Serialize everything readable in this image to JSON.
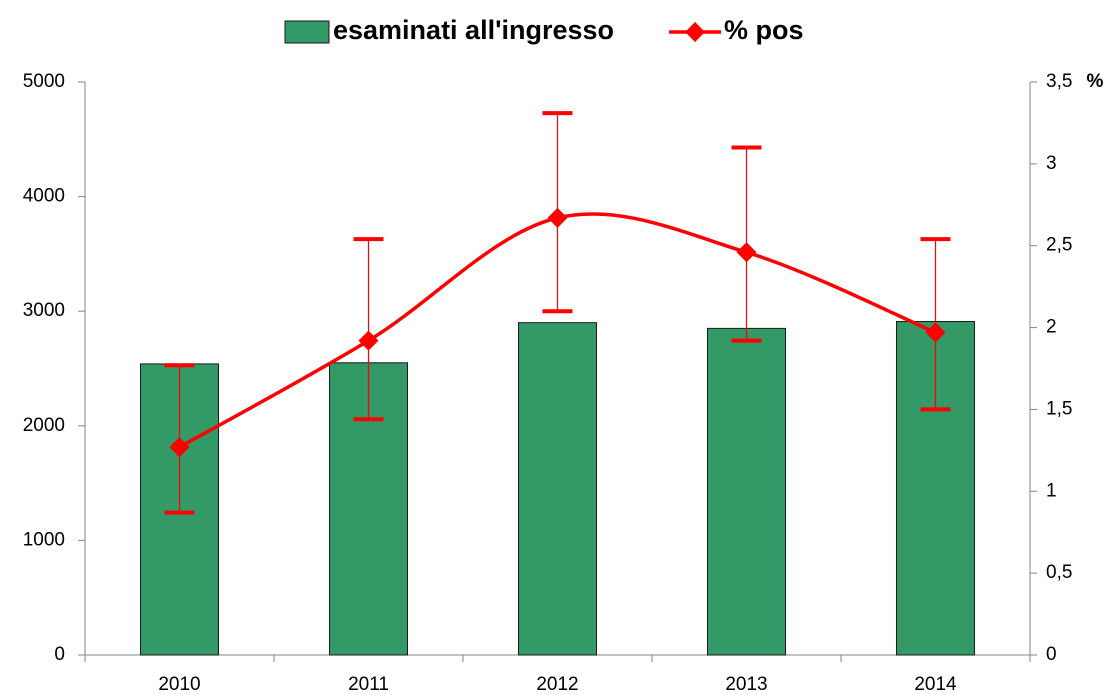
{
  "chart_data": {
    "type": "bar",
    "categories": [
      "2010",
      "2011",
      "2012",
      "2013",
      "2014"
    ],
    "series": [
      {
        "name": "esaminati all'ingresso",
        "type": "bar",
        "color": "#339966",
        "values": [
          2540,
          2550,
          2900,
          2850,
          2910
        ]
      },
      {
        "name": "% pos",
        "type": "line",
        "axis": "y2",
        "color": "#ff0000",
        "values": [
          1.27,
          1.92,
          2.67,
          2.46,
          1.97
        ],
        "error_plus": [
          0.5,
          0.62,
          0.64,
          0.64,
          0.57
        ],
        "error_minus": [
          0.4,
          0.48,
          0.57,
          0.54,
          0.47
        ]
      }
    ],
    "ylim": [
      0,
      5000
    ],
    "yticks": [
      0,
      1000,
      2000,
      3000,
      4000,
      5000
    ],
    "y2lim": [
      0,
      3.5
    ],
    "y2ticks": [
      0,
      {
        "value": 0.5,
        "label": "0,5"
      },
      1,
      {
        "value": 1.5,
        "label": "1,5"
      },
      2,
      {
        "value": 2.5,
        "label": "2,5"
      },
      3,
      {
        "value": 3.5,
        "label": "3,5"
      }
    ],
    "y2label": "%",
    "grid": false
  }
}
